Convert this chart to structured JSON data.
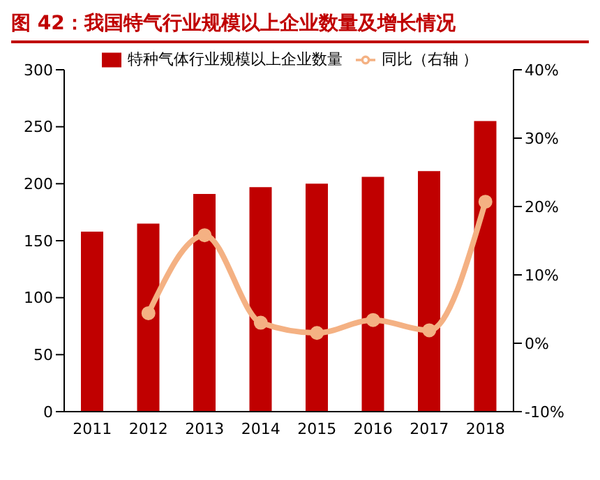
{
  "chart_data": {
    "type": "bar",
    "title": "图 42：我国特气行业规模以上企业数量及增长情况",
    "categories": [
      "2011",
      "2012",
      "2013",
      "2014",
      "2015",
      "2016",
      "2017",
      "2018"
    ],
    "series": [
      {
        "name": "特种气体行业规模以上企业数量",
        "color": "#c00000",
        "values": [
          158,
          165,
          191,
          197,
          200,
          206,
          211,
          255
        ]
      },
      {
        "name": "同比（右轴 ）",
        "type": "line",
        "axis": "y2",
        "color": "#f4b183",
        "marker": "circle",
        "values": [
          null,
          4.4,
          15.8,
          3.0,
          1.5,
          3.4,
          1.9,
          20.7
        ]
      }
    ],
    "ylim": [
      0,
      300
    ],
    "yticks": [
      0,
      50,
      100,
      150,
      200,
      250,
      300
    ],
    "y2lim": [
      -10,
      40
    ],
    "y2ticks": [
      {
        "value": -10,
        "label": "-10%"
      },
      {
        "value": 0,
        "label": "0%"
      },
      {
        "value": 10,
        "label": "10%"
      },
      {
        "value": 20,
        "label": "20%"
      },
      {
        "value": 30,
        "label": "30%"
      },
      {
        "value": 40,
        "label": "40%"
      }
    ],
    "legend": "top",
    "grid": false
  }
}
